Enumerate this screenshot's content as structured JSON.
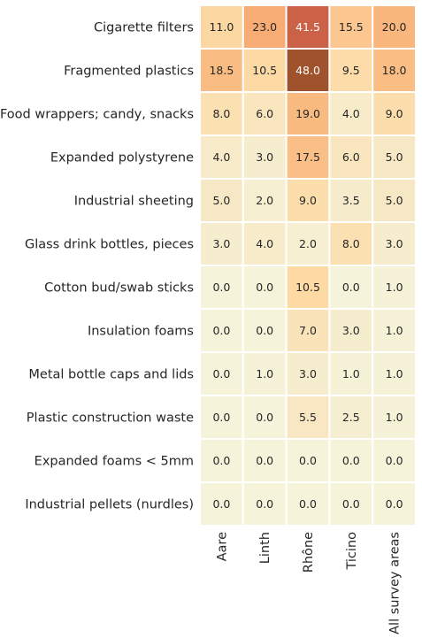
{
  "chart_data": {
    "type": "heatmap",
    "rows": [
      "Cigarette filters",
      "Fragmented plastics",
      "Food wrappers; candy, snacks",
      "Expanded polystyrene",
      "Industrial sheeting",
      "Glass drink bottles, pieces",
      "Cotton bud/swab sticks",
      "Insulation foams",
      "Metal bottle caps and lids",
      "Plastic construction waste",
      "Expanded foams < 5mm",
      "Industrial pellets (nurdles)"
    ],
    "columns": [
      "Aare",
      "Linth",
      "Rhône",
      "Ticino",
      "All survey areas"
    ],
    "values": [
      [
        11.0,
        23.0,
        41.5,
        15.5,
        20.0
      ],
      [
        18.5,
        10.5,
        48.0,
        9.5,
        18.0
      ],
      [
        8.0,
        6.0,
        19.0,
        4.0,
        9.0
      ],
      [
        4.0,
        3.0,
        17.5,
        6.0,
        5.0
      ],
      [
        5.0,
        2.0,
        9.0,
        3.5,
        5.0
      ],
      [
        3.0,
        4.0,
        2.0,
        8.0,
        3.0
      ],
      [
        0.0,
        0.0,
        10.5,
        0.0,
        1.0
      ],
      [
        0.0,
        0.0,
        7.0,
        3.0,
        1.0
      ],
      [
        0.0,
        1.0,
        3.0,
        1.0,
        1.0
      ],
      [
        0.0,
        0.0,
        5.5,
        2.5,
        1.0
      ],
      [
        0.0,
        0.0,
        0.0,
        0.0,
        0.0
      ],
      [
        0.0,
        0.0,
        0.0,
        0.0,
        0.0
      ]
    ],
    "value_range": [
      0,
      48
    ],
    "colormap": "light-cream-to-brown",
    "colorbar": false,
    "cell_borders": true,
    "annotations": true,
    "grid": false
  }
}
